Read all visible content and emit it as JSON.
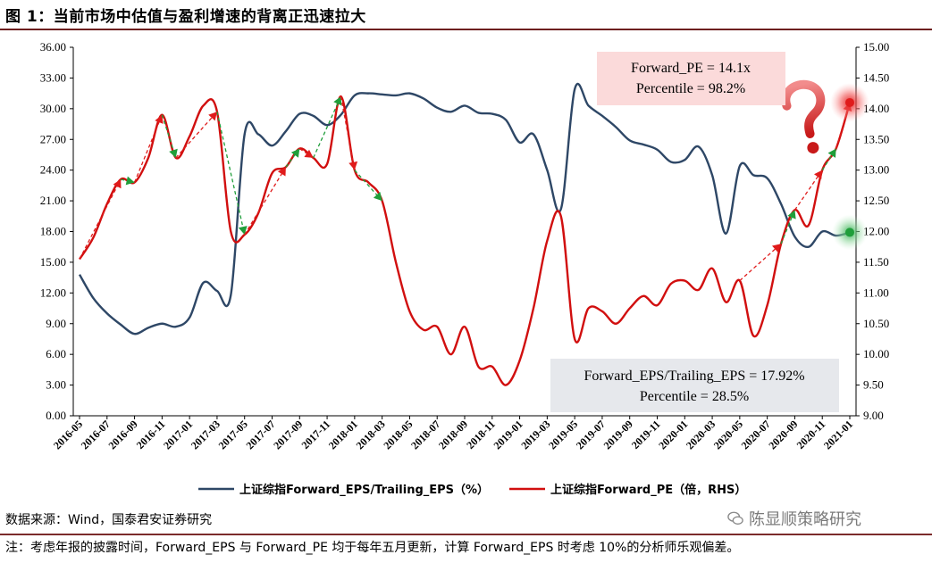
{
  "title": "图 1：当前市场中估值与盈利增速的背离正迅速拉大",
  "source_text": "数据来源：Wind，国泰君安证券研究",
  "note_text": "注：考虑年报的披露时间，Forward_EPS 与 Forward_PE 均于每年五月更新，计算 Forward_EPS 时考虑 10%的分析师乐观偏差。",
  "watermark_text": "陈显顺策略研究",
  "colors": {
    "eps_line": "#2e4766",
    "pe_line": "#d10f0f",
    "arrow_green": "#1f9e3a",
    "arrow_red": "#e01b1b",
    "box_pink": "#fbdada",
    "box_grey": "#e6e8ec",
    "title_rule": "#6d1f1f"
  },
  "chart_data": {
    "type": "line",
    "title": "",
    "x": [
      "2016-05",
      "2016-06",
      "2016-07",
      "2016-08",
      "2016-09",
      "2016-10",
      "2016-11",
      "2016-12",
      "2017-01",
      "2017-02",
      "2017-03",
      "2017-04",
      "2017-05",
      "2017-06",
      "2017-07",
      "2017-08",
      "2017-09",
      "2017-10",
      "2017-11",
      "2017-12",
      "2018-01",
      "2018-02",
      "2018-03",
      "2018-04",
      "2018-05",
      "2018-06",
      "2018-07",
      "2018-08",
      "2018-09",
      "2018-10",
      "2018-11",
      "2018-12",
      "2019-01",
      "2019-02",
      "2019-03",
      "2019-04",
      "2019-05",
      "2019-06",
      "2019-07",
      "2019-08",
      "2019-09",
      "2019-10",
      "2019-11",
      "2019-12",
      "2020-01",
      "2020-02",
      "2020-03",
      "2020-04",
      "2020-05",
      "2020-06",
      "2020-07",
      "2020-08",
      "2020-09",
      "2020-10",
      "2020-11",
      "2020-12",
      "2021-01"
    ],
    "x_tick_labels": [
      "2016-05",
      "2016-07",
      "2016-09",
      "2016-11",
      "2017-01",
      "2017-03",
      "2017-05",
      "2017-07",
      "2017-09",
      "2017-11",
      "2018-01",
      "2018-03",
      "2018-05",
      "2018-07",
      "2018-09",
      "2018-11",
      "2019-01",
      "2019-03",
      "2019-05",
      "2019-07",
      "2019-09",
      "2019-11",
      "2020-01",
      "2020-03",
      "2020-05",
      "2020-07",
      "2020-09",
      "2020-11",
      "2021-01"
    ],
    "y_left": {
      "label": "",
      "lim": [
        0,
        36
      ],
      "ticks": [
        "0.00",
        "3.00",
        "6.00",
        "9.00",
        "12.00",
        "15.00",
        "18.00",
        "21.00",
        "24.00",
        "27.00",
        "30.00",
        "33.00",
        "36.00"
      ]
    },
    "y_right": {
      "label": "",
      "lim": [
        9,
        15
      ],
      "ticks": [
        "9.00",
        "9.50",
        "10.00",
        "10.50",
        "11.00",
        "11.50",
        "12.00",
        "12.50",
        "13.00",
        "13.50",
        "14.00",
        "14.50",
        "15.00"
      ]
    },
    "series": [
      {
        "name": "上证综指Forward_EPS/Trailing_EPS（%）",
        "axis": "left",
        "values": [
          13.8,
          11.5,
          10.0,
          8.9,
          8.0,
          8.6,
          9.0,
          8.7,
          9.6,
          13.0,
          12.2,
          11.8,
          27.5,
          27.5,
          26.4,
          27.8,
          29.5,
          29.3,
          28.4,
          29.4,
          31.3,
          31.5,
          31.4,
          31.3,
          31.5,
          31.0,
          30.1,
          29.7,
          30.3,
          29.6,
          29.5,
          28.9,
          26.7,
          27.5,
          24.0,
          20.2,
          31.9,
          30.3,
          29.3,
          28.2,
          26.9,
          26.5,
          26.0,
          24.8,
          25.0,
          26.3,
          23.5,
          17.8,
          24.4,
          23.5,
          23.2,
          20.7,
          17.5,
          16.5,
          18.0,
          17.6,
          17.92
        ]
      },
      {
        "name": "上证综指Forward_PE（倍，RHS）",
        "axis": "right",
        "values": [
          11.55,
          11.9,
          12.45,
          12.85,
          12.8,
          13.2,
          13.9,
          13.2,
          13.55,
          14.05,
          13.95,
          12.0,
          11.95,
          12.3,
          12.95,
          13.05,
          13.35,
          13.2,
          13.1,
          14.2,
          13.0,
          12.8,
          12.5,
          11.5,
          10.7,
          10.4,
          10.45,
          10.0,
          10.45,
          9.8,
          9.8,
          9.5,
          9.9,
          10.75,
          11.85,
          12.25,
          10.25,
          10.75,
          10.7,
          10.5,
          10.75,
          10.95,
          10.8,
          11.15,
          11.2,
          11.05,
          11.4,
          10.85,
          11.2,
          10.3,
          10.8,
          11.8,
          12.35,
          12.1,
          13.0,
          13.35,
          14.1
        ]
      }
    ],
    "annotations": [
      {
        "line1": "Forward_PE = 14.1x",
        "line2": "Percentile = 98.2%"
      },
      {
        "line1": "Forward_EPS/Trailing_EPS = 17.92%",
        "line2": "Percentile = 28.5%"
      }
    ],
    "trend_arrows": [
      {
        "from_month": "2016-05",
        "to_month": "2016-08",
        "dir": "up"
      },
      {
        "from_month": "2016-08",
        "to_month": "2016-09",
        "dir": "down"
      },
      {
        "from_month": "2016-09",
        "to_month": "2016-11",
        "dir": "up"
      },
      {
        "from_month": "2016-11",
        "to_month": "2016-12",
        "dir": "down"
      },
      {
        "from_month": "2016-12",
        "to_month": "2017-03",
        "dir": "up"
      },
      {
        "from_month": "2017-03",
        "to_month": "2017-05",
        "dir": "down"
      },
      {
        "from_month": "2017-05",
        "to_month": "2017-08",
        "dir": "up"
      },
      {
        "from_month": "2017-08",
        "to_month": "2017-09",
        "dir": "down"
      },
      {
        "from_month": "2017-09",
        "to_month": "2017-10",
        "dir": "up"
      },
      {
        "from_month": "2017-10",
        "to_month": "2017-12",
        "dir": "down"
      },
      {
        "from_month": "2017-12",
        "to_month": "2018-01",
        "dir": "up"
      },
      {
        "from_month": "2018-01",
        "to_month": "2018-03",
        "dir": "down"
      },
      {
        "from_month": "2020-05",
        "to_month": "2020-08",
        "dir": "up"
      },
      {
        "from_month": "2020-08",
        "to_month": "2020-09",
        "dir": "down"
      },
      {
        "from_month": "2020-09",
        "to_month": "2020-11",
        "dir": "up"
      },
      {
        "from_month": "2020-11",
        "to_month": "2020-12",
        "dir": "down"
      },
      {
        "from_month": "2020-12",
        "to_month": "2021-01",
        "dir": "up"
      }
    ],
    "legend_position": "bottom",
    "grid": false
  }
}
